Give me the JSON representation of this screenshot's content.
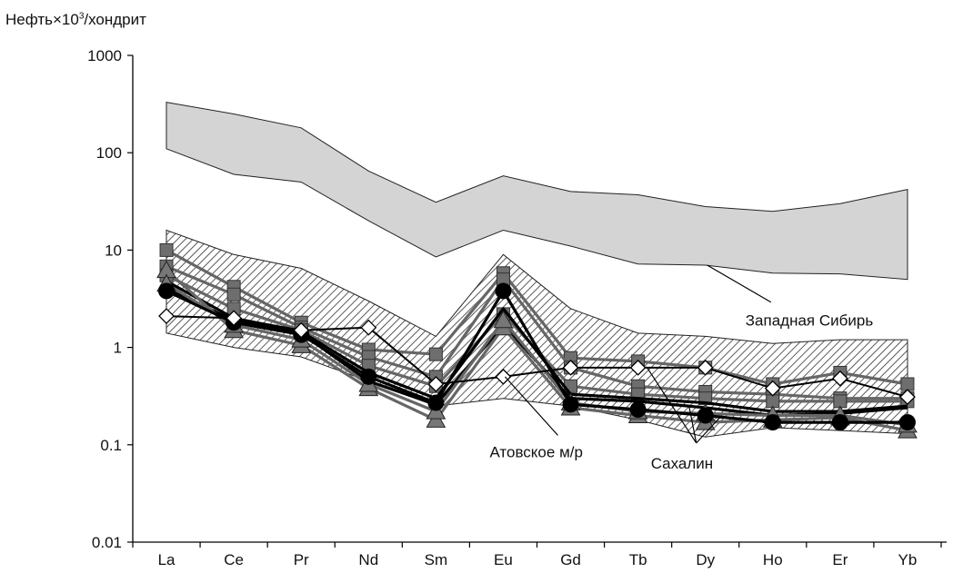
{
  "chart_data": {
    "type": "line",
    "ylabel_prefix": "Нефть×10",
    "ylabel_sup": "3",
    "ylabel_suffix": "/хондрит",
    "yscale": "log",
    "ylim": [
      0.01,
      1000
    ],
    "yticks": [
      {
        "value": 1000,
        "label": "1000"
      },
      {
        "value": 100,
        "label": "100"
      },
      {
        "value": 10,
        "label": "10"
      },
      {
        "value": 1,
        "label": "1"
      },
      {
        "value": 0.1,
        "label": "0.1"
      },
      {
        "value": 0.01,
        "label": "0.01"
      }
    ],
    "categories": [
      "La",
      "Ce",
      "Pr",
      "Nd",
      "Sm",
      "Eu",
      "Gd",
      "Tb",
      "Dy",
      "Ho",
      "Er",
      "Yb"
    ],
    "bands": [
      {
        "label": "Западная Сибирь",
        "fill": "#d4d4d4",
        "pattern": "solid",
        "upper": [
          330,
          250,
          180,
          65,
          31,
          58,
          40,
          37,
          28,
          25,
          30,
          42
        ],
        "lower": [
          110,
          60,
          50,
          20,
          8.5,
          16,
          11,
          7.2,
          7,
          5.8,
          5.7,
          5
        ]
      },
      {
        "label": "Сахалин",
        "fill": "#ffffff",
        "pattern": "hatch",
        "upper": [
          16,
          9,
          6.5,
          3,
          1.3,
          9,
          2.5,
          1.4,
          1.3,
          1.1,
          1.2,
          1.2
        ],
        "lower": [
          1.4,
          1.0,
          0.8,
          0.45,
          0.25,
          0.3,
          0.25,
          0.18,
          0.12,
          0.15,
          0.14,
          0.13
        ]
      }
    ],
    "series": [
      {
        "marker": "square",
        "color": "#666666",
        "values": [
          10,
          4.2,
          1.8,
          0.95,
          0.85,
          5.8,
          0.78,
          0.72,
          0.62,
          0.42,
          0.55,
          0.42
        ]
      },
      {
        "marker": "square",
        "color": "#666666",
        "values": [
          6.8,
          3.5,
          1.6,
          0.8,
          0.5,
          5.0,
          0.62,
          0.4,
          0.35,
          0.33,
          0.3,
          0.3
        ]
      },
      {
        "marker": "square",
        "color": "#666666",
        "values": [
          5.5,
          2.5,
          1.5,
          0.65,
          0.4,
          2.2,
          0.4,
          0.33,
          0.3,
          0.28,
          0.28,
          0.28
        ]
      },
      {
        "marker": "triangle",
        "color": "#666666",
        "values": [
          6.2,
          1.5,
          1.05,
          0.38,
          0.18,
          1.6,
          0.24,
          0.2,
          0.17,
          0.18,
          0.19,
          0.14
        ]
      },
      {
        "marker": "triangle",
        "color": "#666666",
        "values": [
          4.5,
          1.7,
          1.2,
          0.42,
          0.22,
          1.9,
          0.27,
          0.22,
          0.21,
          0.2,
          0.2,
          0.16
        ]
      },
      {
        "marker": "circle",
        "color": "#000000",
        "values": [
          3.8,
          1.8,
          1.35,
          0.5,
          0.27,
          3.8,
          0.26,
          0.23,
          0.2,
          0.17,
          0.17,
          0.17
        ]
      },
      {
        "marker": "none",
        "color": "#000000",
        "values": [
          4.0,
          1.9,
          1.4,
          0.45,
          0.26,
          1.7,
          0.3,
          0.28,
          0.24,
          0.2,
          0.21,
          0.24
        ]
      },
      {
        "marker": "none",
        "color": "#000000",
        "values": [
          4.8,
          2.0,
          1.45,
          0.55,
          0.3,
          2.5,
          0.33,
          0.3,
          0.27,
          0.22,
          0.22,
          0.25
        ]
      },
      {
        "marker": "diamond",
        "color": "#000000",
        "values": [
          2.1,
          2.0,
          1.5,
          1.6,
          0.42,
          0.5,
          0.62,
          0.62,
          0.62,
          0.38,
          0.48,
          0.31
        ]
      }
    ],
    "annotations": [
      {
        "text": "Западная Сибирь",
        "value": 1.9,
        "after_category": "Ho"
      },
      {
        "text": "Атовское м/р",
        "value": 0.085,
        "after_category": "Eu"
      },
      {
        "text": "Сахалин",
        "value": 0.065,
        "after_category": "Dy"
      }
    ],
    "grid": false,
    "legend": "none"
  }
}
